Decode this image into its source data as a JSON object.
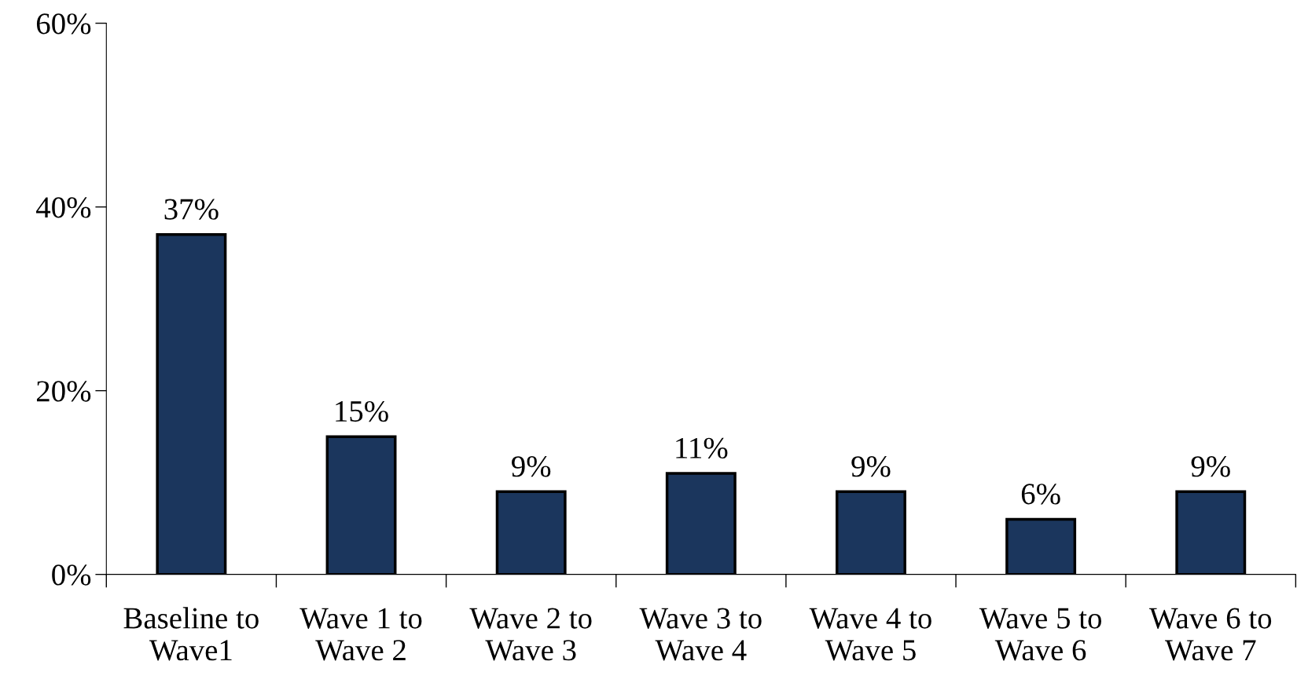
{
  "chart_data": {
    "type": "bar",
    "categories": [
      "Baseline to\nWave1",
      "Wave 1 to\nWave 2",
      "Wave 2 to\nWave 3",
      "Wave 3 to\nWave 4",
      "Wave 4 to\nWave 5",
      "Wave 5 to\nWave 6",
      "Wave 6 to\nWave 7"
    ],
    "values": [
      37,
      15,
      9,
      11,
      9,
      6,
      9
    ],
    "value_labels": [
      "37%",
      "15%",
      "9%",
      "11%",
      "9%",
      "6%",
      "9%"
    ],
    "color": "#1b365d",
    "ylim": [
      0,
      60
    ],
    "yticks": [
      {
        "value": 0,
        "label": "0%"
      },
      {
        "value": 20,
        "label": "20%"
      },
      {
        "value": 40,
        "label": "40%"
      },
      {
        "value": 60,
        "label": "60%"
      }
    ],
    "grid": false
  }
}
